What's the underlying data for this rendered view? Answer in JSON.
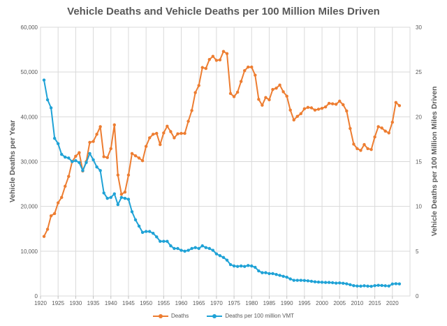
{
  "chart_data": {
    "type": "line",
    "title": "Vehicle Deaths and Vehicle Deaths per 100 Million Miles Driven",
    "xlabel": "",
    "ylabel": "Vehicle Deaths per Year",
    "y2label": "Vehicle Deaths per 100 Million Miles Driven",
    "xlim": [
      1920,
      2025
    ],
    "ylim": [
      0,
      60000
    ],
    "y2lim": [
      0,
      30
    ],
    "x_ticks": [
      "1920",
      "1925",
      "1930",
      "1935",
      "1940",
      "1945",
      "1950",
      "1955",
      "1960",
      "1965",
      "1970",
      "1975",
      "1980",
      "1985",
      "1990",
      "1995",
      "2000",
      "2005",
      "2010",
      "2015",
      "2020"
    ],
    "y_ticks": [
      "0",
      "10,000",
      "20,000",
      "30,000",
      "40,000",
      "50,000",
      "60,000"
    ],
    "y2_ticks": [
      "0",
      "5",
      "10",
      "15",
      "20",
      "25",
      "30"
    ],
    "grid": true,
    "legend_position": "bottom",
    "colors": {
      "deaths": "#ED7D31",
      "rate": "#1FA2D6",
      "grid": "#D9D9D9",
      "text": "#595959"
    },
    "series": [
      {
        "name": "Deaths",
        "axis": "left",
        "x": [
          1921,
          1922,
          1923,
          1924,
          1925,
          1926,
          1927,
          1928,
          1929,
          1930,
          1931,
          1932,
          1933,
          1934,
          1935,
          1936,
          1937,
          1938,
          1939,
          1940,
          1941,
          1942,
          1943,
          1944,
          1945,
          1946,
          1947,
          1948,
          1949,
          1950,
          1951,
          1952,
          1953,
          1954,
          1955,
          1956,
          1957,
          1958,
          1959,
          1960,
          1961,
          1962,
          1963,
          1964,
          1965,
          1966,
          1967,
          1968,
          1969,
          1970,
          1971,
          1972,
          1973,
          1974,
          1975,
          1976,
          1977,
          1978,
          1979,
          1980,
          1981,
          1982,
          1983,
          1984,
          1985,
          1986,
          1987,
          1988,
          1989,
          1990,
          1991,
          1992,
          1993,
          1994,
          1995,
          1996,
          1997,
          1998,
          1999,
          2000,
          2001,
          2002,
          2003,
          2004,
          2005,
          2006,
          2007,
          2008,
          2009,
          2010,
          2011,
          2012,
          2013,
          2014,
          2015,
          2016,
          2017,
          2018,
          2019,
          2020,
          2021,
          2022
        ],
        "values": [
          13300,
          14900,
          17900,
          18400,
          20800,
          22000,
          24500,
          26700,
          30000,
          31200,
          32000,
          27900,
          30000,
          34300,
          34500,
          36100,
          37800,
          31100,
          30900,
          32900,
          38200,
          27000,
          22700,
          23200,
          27000,
          31800,
          31300,
          30800,
          30200,
          33400,
          35300,
          36100,
          36300,
          33800,
          36400,
          37900,
          36700,
          35300,
          36200,
          36300,
          36300,
          39000,
          41400,
          45400,
          47000,
          51000,
          50800,
          52800,
          53500,
          52600,
          52700,
          54600,
          54100,
          45200,
          44500,
          45500,
          47900,
          50300,
          51100,
          51100,
          49300,
          43900,
          42600,
          44300,
          43800,
          46100,
          46400,
          47100,
          45600,
          44600,
          41500,
          39300,
          40100,
          40700,
          41800,
          42100,
          42000,
          41500,
          41700,
          41900,
          42200,
          43000,
          42900,
          42800,
          43500,
          42700,
          41300,
          37400,
          33900,
          32900,
          32500,
          33800,
          32900,
          32700,
          35500,
          37800,
          37500,
          36800,
          36400,
          38800,
          43200,
          42500
        ]
      },
      {
        "name": "Deaths per 100 million VMT",
        "axis": "right",
        "x": [
          1921,
          1922,
          1923,
          1924,
          1925,
          1926,
          1927,
          1928,
          1929,
          1930,
          1931,
          1932,
          1933,
          1934,
          1935,
          1936,
          1937,
          1938,
          1939,
          1940,
          1941,
          1942,
          1943,
          1944,
          1945,
          1946,
          1947,
          1948,
          1949,
          1950,
          1951,
          1952,
          1953,
          1954,
          1955,
          1956,
          1957,
          1958,
          1959,
          1960,
          1961,
          1962,
          1963,
          1964,
          1965,
          1966,
          1967,
          1968,
          1969,
          1970,
          1971,
          1972,
          1973,
          1974,
          1975,
          1976,
          1977,
          1978,
          1979,
          1980,
          1981,
          1982,
          1983,
          1984,
          1985,
          1986,
          1987,
          1988,
          1989,
          1990,
          1991,
          1992,
          1993,
          1994,
          1995,
          1996,
          1997,
          1998,
          1999,
          2000,
          2001,
          2002,
          2003,
          2004,
          2005,
          2006,
          2007,
          2008,
          2009,
          2010,
          2011,
          2012,
          2013,
          2014,
          2015,
          2016,
          2017,
          2018,
          2019,
          2020,
          2021,
          2022
        ],
        "values": [
          24.1,
          21.9,
          21.0,
          17.6,
          17.0,
          15.8,
          15.5,
          15.4,
          15.0,
          15.1,
          14.9,
          14.0,
          14.9,
          15.9,
          15.2,
          14.4,
          14.0,
          11.5,
          10.9,
          11.0,
          11.4,
          10.2,
          11.0,
          10.9,
          10.8,
          9.4,
          8.5,
          7.8,
          7.1,
          7.2,
          7.2,
          7.0,
          6.6,
          6.1,
          6.1,
          6.1,
          5.6,
          5.3,
          5.3,
          5.1,
          5.0,
          5.1,
          5.3,
          5.4,
          5.3,
          5.6,
          5.4,
          5.3,
          5.1,
          4.7,
          4.5,
          4.3,
          4.0,
          3.5,
          3.35,
          3.3,
          3.35,
          3.3,
          3.4,
          3.35,
          3.2,
          2.8,
          2.6,
          2.6,
          2.5,
          2.5,
          2.4,
          2.3,
          2.2,
          2.1,
          1.9,
          1.75,
          1.75,
          1.75,
          1.73,
          1.69,
          1.64,
          1.58,
          1.55,
          1.53,
          1.51,
          1.51,
          1.48,
          1.44,
          1.46,
          1.42,
          1.36,
          1.26,
          1.15,
          1.11,
          1.1,
          1.14,
          1.1,
          1.08,
          1.15,
          1.19,
          1.17,
          1.14,
          1.11,
          1.34,
          1.37,
          1.35
        ]
      }
    ]
  }
}
